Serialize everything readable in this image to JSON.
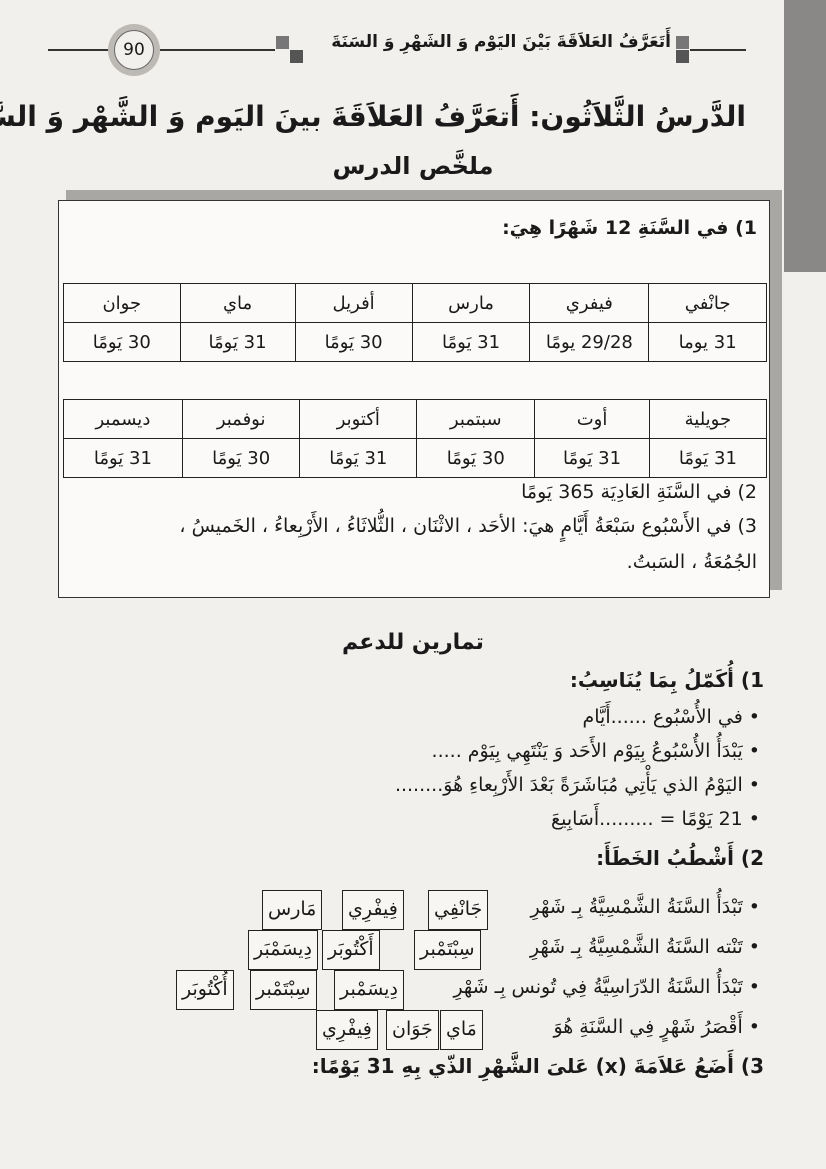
{
  "header": {
    "page_number": "90",
    "running_title": "أَتَعَرَّفُ العَلاَقَةَ بَيْنَ اليَوْم وَ الشَهْرِ وَ السَنَةَ"
  },
  "lesson": {
    "title": "الدَّرسُ الثَّلاَثُون: أَتعَرَّفُ العَلاَقَةَ بينَ اليَوم وَ الشَّهْر وَ السَّنَة",
    "summary_heading": "ملخَّص الدرس"
  },
  "summary": {
    "point1": "1) في السَّنَةِ 12 شَهْرًا هِيَ:",
    "table1": {
      "months": [
        "جانْفي",
        "فيفري",
        "مارس",
        "أفريل",
        "ماي",
        "جوان"
      ],
      "days": [
        "31 يوما",
        "29/28 يومًا",
        "31 يَومًا",
        "30 يَومًا",
        "31 يَومًا",
        "30 يَومًا"
      ]
    },
    "table2": {
      "months": [
        "جويلية",
        "أوت",
        "سبتمبر",
        "أكتوبر",
        "نوفمبر",
        "ديسمبر"
      ],
      "days": [
        "31 يَومًا",
        "31 يَومًا",
        "30 يَومًا",
        "31 يَومًا",
        "30 يَومًا",
        "31 يَومًا"
      ]
    },
    "point2": "2) في السَّنَةِ العَادِيَة 365 يَومًا",
    "point3_line1": "3) في الأَسْبُوع سَبْعَةُ أَيَّامٍ هيَ: الأحَد ، الاثْنَان ، الثُّلاثَاءُ ، الأَرْبِعاءُ ، الخَميسُ ،",
    "point3_line2": "الجُمُعَةُ ، السَبتُ."
  },
  "exercises": {
    "heading": "تمارين للدعم",
    "ex1": {
      "title": "1) أُكَمّلُ بِمَا يُنَاسِبُ:",
      "items": [
        "في الأُسْبُوع ......أَيَّام",
        "يَبْدَأُ الأُسْبُوعُ بِيَوْم الأَحَد وَ يَنْتَهِي بِيَوْم .....",
        "اليَوْمُ الذي يَأْتِي مُبَاشَرَةً بَعْدَ الأَرْبِعاءِ هُوَ........",
        "21 يَوْمًا = .........أَسَابِيعَ"
      ]
    },
    "ex2": {
      "title": "2) أَشْطُبُ الخَطَأَ:",
      "items": [
        {
          "text": "تَبْدَأُ السَّنَةُ الشَّمْسِيَّةُ بِـ شَهْرِ",
          "options": [
            "جَانْفِي",
            "فِيفْرِي",
            "مَارس"
          ]
        },
        {
          "text": "تَنْته السَّنَةُ الشَّمْسِيَّةُ بِـ شَهْرِ",
          "options": [
            "سِبْتَمْبر",
            "أَكْتُوبَر",
            "دِيسَمْبَر"
          ]
        },
        {
          "text": "تَبْدَأُ السَّنَةُ الدّرَاسِيَّةُ فِي تُونس بِـ شَهْرِ",
          "options": [
            "دِيسَمْبر",
            "سِبْتَمْبر",
            "أُكْتُوبَر"
          ]
        },
        {
          "text": "أَقْصَرُ شَهْرٍ فِي السَّنَةِ هُوَ",
          "options": [
            "مَاي",
            "جَوَان",
            "فِيفْرِي"
          ]
        }
      ]
    },
    "ex3": {
      "title": "3) أَضَعُ عَلاَمَةَ (x) عَلىَ الشَّهْرِ الذّي بِهِ 31 يَوْمًا:"
    }
  }
}
